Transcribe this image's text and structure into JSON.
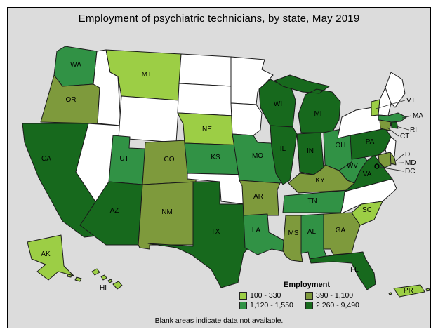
{
  "title": "Employment of psychiatric technicians, by state, May 2019",
  "note": "Blank areas indicate data not available.",
  "legend": {
    "heading": "Employment",
    "classes": [
      {
        "range": "100 - 330",
        "color": "#9CCE45"
      },
      {
        "range": "390 - 1,100",
        "color": "#7E9A3C"
      },
      {
        "range": "1,120 - 1,550",
        "color": "#319245"
      },
      {
        "range": "2,260 - 9,490",
        "color": "#17691D"
      }
    ]
  },
  "map": {
    "background_color": "#DCDCDC",
    "no_data_color": "#FFFFFF",
    "border_color": "#1A1A1A",
    "states": [
      {
        "abbr": "WA",
        "class_index": 2
      },
      {
        "abbr": "OR",
        "class_index": 1
      },
      {
        "abbr": "CA",
        "class_index": 3
      },
      {
        "abbr": "NV",
        "class_index": null
      },
      {
        "abbr": "ID",
        "class_index": null
      },
      {
        "abbr": "MT",
        "class_index": 0
      },
      {
        "abbr": "WY",
        "class_index": null
      },
      {
        "abbr": "UT",
        "class_index": 2
      },
      {
        "abbr": "CO",
        "class_index": 1
      },
      {
        "abbr": "AZ",
        "class_index": 3
      },
      {
        "abbr": "NM",
        "class_index": 1
      },
      {
        "abbr": "ND",
        "class_index": null
      },
      {
        "abbr": "SD",
        "class_index": null
      },
      {
        "abbr": "NE",
        "class_index": 0
      },
      {
        "abbr": "KS",
        "class_index": 2
      },
      {
        "abbr": "OK",
        "class_index": null
      },
      {
        "abbr": "TX",
        "class_index": 3
      },
      {
        "abbr": "MN",
        "class_index": null
      },
      {
        "abbr": "IA",
        "class_index": null
      },
      {
        "abbr": "MO",
        "class_index": 2
      },
      {
        "abbr": "AR",
        "class_index": 1
      },
      {
        "abbr": "LA",
        "class_index": 2
      },
      {
        "abbr": "WI",
        "class_index": 3
      },
      {
        "abbr": "IL",
        "class_index": 3
      },
      {
        "abbr": "MI",
        "class_index": 3
      },
      {
        "abbr": "IN",
        "class_index": 3
      },
      {
        "abbr": "OH",
        "class_index": 2
      },
      {
        "abbr": "KY",
        "class_index": 1
      },
      {
        "abbr": "TN",
        "class_index": 2
      },
      {
        "abbr": "WV",
        "class_index": 2
      },
      {
        "abbr": "VA",
        "class_index": 3
      },
      {
        "abbr": "NC",
        "class_index": null
      },
      {
        "abbr": "SC",
        "class_index": 0
      },
      {
        "abbr": "GA",
        "class_index": 1
      },
      {
        "abbr": "AL",
        "class_index": 2
      },
      {
        "abbr": "MS",
        "class_index": 1
      },
      {
        "abbr": "FL",
        "class_index": 3
      },
      {
        "abbr": "PA",
        "class_index": 3
      },
      {
        "abbr": "NY",
        "class_index": null
      },
      {
        "abbr": "NJ",
        "class_index": null
      },
      {
        "abbr": "DE",
        "class_index": 1
      },
      {
        "abbr": "MD",
        "class_index": 1
      },
      {
        "abbr": "DC",
        "class_index": 3
      },
      {
        "abbr": "VT",
        "class_index": 0
      },
      {
        "abbr": "NH",
        "class_index": null
      },
      {
        "abbr": "ME",
        "class_index": null
      },
      {
        "abbr": "MA",
        "class_index": 2
      },
      {
        "abbr": "RI",
        "class_index": 3
      },
      {
        "abbr": "CT",
        "class_index": 1
      },
      {
        "abbr": "AK",
        "class_index": 0
      },
      {
        "abbr": "HI",
        "class_index": 0
      },
      {
        "abbr": "PR",
        "class_index": 0
      }
    ]
  }
}
